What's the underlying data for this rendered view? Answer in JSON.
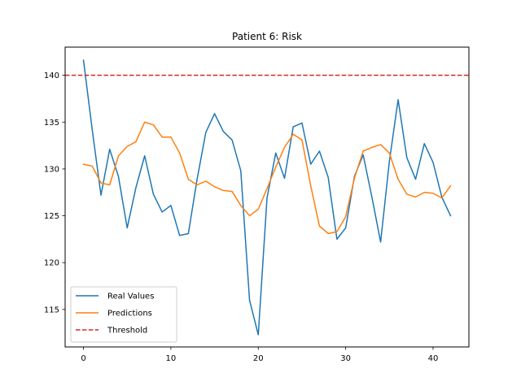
{
  "chart_data": {
    "type": "line",
    "title": "Patient 6: Risk",
    "xlabel": "",
    "ylabel": "",
    "xlim": [
      -2.1,
      44.1
    ],
    "ylim": [
      111.0,
      143.0
    ],
    "xticks": [
      0,
      10,
      20,
      30,
      40
    ],
    "yticks": [
      115,
      120,
      125,
      130,
      135,
      140
    ],
    "grid": false,
    "legend_position": "lower-left",
    "threshold": {
      "name": "Threshold",
      "value": 140,
      "color": "#d62728",
      "style": "dashed"
    },
    "series": [
      {
        "name": "Real Values",
        "color": "#1f77b4",
        "x": [
          0,
          1,
          2,
          3,
          4,
          5,
          6,
          7,
          8,
          9,
          10,
          11,
          12,
          13,
          14,
          15,
          16,
          17,
          18,
          19,
          20,
          21,
          22,
          23,
          24,
          25,
          26,
          27,
          28,
          29,
          30,
          31,
          32,
          33,
          34,
          35,
          36,
          37,
          38,
          39,
          40,
          41,
          42
        ],
        "values": [
          141.6,
          134.2,
          127.2,
          132.1,
          129.2,
          123.7,
          128.0,
          131.4,
          127.3,
          125.4,
          126.1,
          122.9,
          123.1,
          128.9,
          133.9,
          135.9,
          134.0,
          133.1,
          129.8,
          116.0,
          112.3,
          126.9,
          131.7,
          129.0,
          134.5,
          134.9,
          130.5,
          131.9,
          129.1,
          122.5,
          123.7,
          129.2,
          131.5,
          127.0,
          122.2,
          130.8,
          137.4,
          131.2,
          128.9,
          132.7,
          130.7,
          127.0,
          125.0
        ]
      },
      {
        "name": "Predictions",
        "color": "#ff7f0e",
        "x": [
          0,
          1,
          2,
          3,
          4,
          5,
          6,
          7,
          8,
          9,
          10,
          11,
          12,
          13,
          14,
          15,
          16,
          17,
          18,
          19,
          20,
          21,
          22,
          23,
          24,
          25,
          26,
          27,
          28,
          29,
          30,
          31,
          32,
          33,
          34,
          35,
          36,
          37,
          38,
          39,
          40,
          41,
          42
        ],
        "values": [
          130.5,
          130.3,
          128.5,
          128.3,
          131.4,
          132.4,
          132.9,
          135.0,
          134.7,
          133.4,
          133.4,
          131.7,
          128.9,
          128.3,
          128.7,
          128.1,
          127.7,
          127.6,
          126.1,
          125.0,
          125.7,
          127.9,
          130.2,
          132.3,
          133.7,
          133.1,
          128.2,
          123.9,
          123.1,
          123.3,
          124.9,
          129.0,
          131.9,
          132.3,
          132.6,
          131.7,
          128.9,
          127.3,
          127.0,
          127.5,
          127.4,
          126.9,
          128.2
        ]
      }
    ]
  }
}
